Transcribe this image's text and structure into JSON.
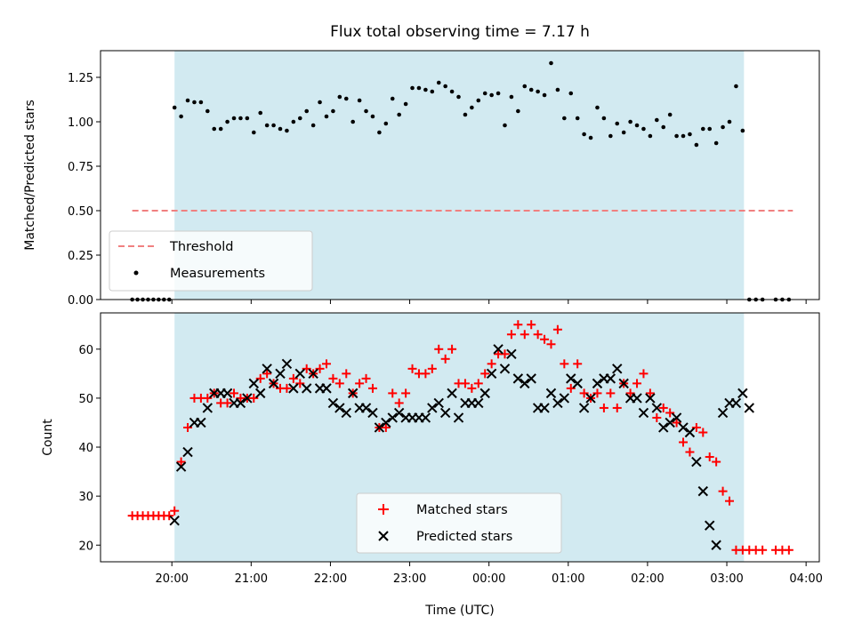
{
  "figure": {
    "title": "Flux total observing time = 7.17 h",
    "xlabel": "Time (UTC)",
    "night_span": {
      "start": "20:02",
      "end": "03:13",
      "color": "#add8e6"
    }
  },
  "chart_data": [
    {
      "type": "scatter",
      "ylabel": "Matched/Predicted stars",
      "xlim": [
        "19:06",
        "04:10"
      ],
      "ylim": [
        0,
        1.4
      ],
      "yticks": [
        0.0,
        0.25,
        0.5,
        0.75,
        1.0,
        1.25
      ],
      "threshold": {
        "name": "Threshold",
        "value": 0.5,
        "x_range": [
          "19:30",
          "03:50"
        ],
        "color": "#f08080"
      },
      "legend": {
        "position": "lower-left",
        "entries": [
          "Threshold",
          "Measurements"
        ]
      },
      "series": [
        {
          "name": "Measurements",
          "color": "#000000",
          "x": [
            "19:30",
            "19:34",
            "19:38",
            "19:42",
            "19:46",
            "19:50",
            "19:54",
            "19:58",
            "20:02",
            "20:07",
            "20:12",
            "20:17",
            "20:22",
            "20:27",
            "20:32",
            "20:37",
            "20:42",
            "20:47",
            "20:52",
            "20:57",
            "21:02",
            "21:07",
            "21:12",
            "21:17",
            "21:22",
            "21:27",
            "21:32",
            "21:37",
            "21:42",
            "21:47",
            "21:52",
            "21:57",
            "22:02",
            "22:07",
            "22:12",
            "22:17",
            "22:22",
            "22:27",
            "22:32",
            "22:37",
            "22:42",
            "22:47",
            "22:52",
            "22:57",
            "23:02",
            "23:07",
            "23:12",
            "23:17",
            "23:22",
            "23:27",
            "23:32",
            "23:37",
            "23:42",
            "23:47",
            "23:52",
            "23:57",
            "00:02",
            "00:07",
            "00:12",
            "00:17",
            "00:22",
            "00:27",
            "00:32",
            "00:37",
            "00:42",
            "00:47",
            "00:52",
            "00:57",
            "01:02",
            "01:07",
            "01:12",
            "01:17",
            "01:22",
            "01:27",
            "01:32",
            "01:37",
            "01:42",
            "01:47",
            "01:52",
            "01:57",
            "02:02",
            "02:07",
            "02:12",
            "02:17",
            "02:22",
            "02:27",
            "02:32",
            "02:37",
            "02:42",
            "02:47",
            "02:52",
            "02:57",
            "03:02",
            "03:07",
            "03:12",
            "03:17",
            "03:22",
            "03:27",
            "03:37",
            "03:42",
            "03:47"
          ],
          "y": [
            0,
            0,
            0,
            0,
            0,
            0,
            0,
            0,
            1.08,
            1.03,
            1.12,
            1.11,
            1.11,
            1.06,
            0.96,
            0.96,
            1.0,
            1.02,
            1.02,
            1.02,
            0.94,
            1.05,
            0.98,
            0.98,
            0.96,
            0.95,
            1.0,
            1.02,
            1.06,
            0.98,
            1.11,
            1.03,
            1.06,
            1.14,
            1.13,
            1.0,
            1.12,
            1.06,
            1.03,
            0.94,
            0.99,
            1.13,
            1.04,
            1.1,
            1.19,
            1.19,
            1.18,
            1.17,
            1.22,
            1.2,
            1.17,
            1.14,
            1.04,
            1.08,
            1.12,
            1.16,
            1.15,
            1.16,
            0.98,
            1.14,
            1.06,
            1.2,
            1.18,
            1.17,
            1.15,
            1.33,
            1.18,
            1.02,
            1.16,
            1.02,
            0.93,
            0.91,
            1.08,
            1.02,
            0.92,
            0.99,
            0.94,
            1.0,
            0.98,
            0.96,
            0.92,
            1.01,
            0.97,
            1.04,
            0.92,
            0.92,
            0.93,
            0.87,
            0.96,
            0.96,
            0.88,
            0.97,
            1.0,
            1.2,
            0.95,
            0,
            0,
            0,
            0,
            0,
            0
          ]
        }
      ]
    },
    {
      "type": "scatter",
      "ylabel": "Count",
      "xlim": [
        "19:06",
        "04:10"
      ],
      "ylim": [
        16.6,
        67.4
      ],
      "yticks": [
        20,
        30,
        40,
        50,
        60
      ],
      "xticks": [
        "20:00",
        "21:00",
        "22:00",
        "23:00",
        "00:00",
        "01:00",
        "02:00",
        "03:00",
        "04:00"
      ],
      "legend": {
        "position": "lower-center",
        "entries": [
          "Matched stars",
          "Predicted stars"
        ]
      },
      "series": [
        {
          "name": "Matched stars",
          "marker": "plus",
          "color": "#ff0000",
          "x": [
            "19:30",
            "19:34",
            "19:38",
            "19:42",
            "19:46",
            "19:50",
            "19:54",
            "19:58",
            "20:02",
            "20:07",
            "20:12",
            "20:17",
            "20:22",
            "20:27",
            "20:32",
            "20:37",
            "20:42",
            "20:47",
            "20:52",
            "20:57",
            "21:02",
            "21:07",
            "21:12",
            "21:17",
            "21:22",
            "21:27",
            "21:32",
            "21:37",
            "21:42",
            "21:47",
            "21:52",
            "21:57",
            "22:02",
            "22:07",
            "22:12",
            "22:17",
            "22:22",
            "22:27",
            "22:32",
            "22:37",
            "22:42",
            "22:47",
            "22:52",
            "22:57",
            "23:02",
            "23:07",
            "23:12",
            "23:17",
            "23:22",
            "23:27",
            "23:32",
            "23:37",
            "23:42",
            "23:47",
            "23:52",
            "23:57",
            "00:02",
            "00:07",
            "00:12",
            "00:17",
            "00:22",
            "00:27",
            "00:32",
            "00:37",
            "00:42",
            "00:47",
            "00:52",
            "00:57",
            "01:02",
            "01:07",
            "01:12",
            "01:17",
            "01:22",
            "01:27",
            "01:32",
            "01:37",
            "01:42",
            "01:47",
            "01:52",
            "01:57",
            "02:02",
            "02:07",
            "02:12",
            "02:17",
            "02:22",
            "02:27",
            "02:32",
            "02:37",
            "02:42",
            "02:47",
            "02:52",
            "02:57",
            "03:02",
            "03:07",
            "03:12",
            "03:17",
            "03:22",
            "03:27",
            "03:37",
            "03:42",
            "03:47"
          ],
          "y": [
            26,
            26,
            26,
            26,
            26,
            26,
            26,
            26,
            27,
            37,
            44,
            50,
            50,
            50,
            51,
            49,
            49,
            51,
            50,
            50,
            50,
            54,
            55,
            53,
            52,
            52,
            54,
            53,
            56,
            55,
            56,
            57,
            54,
            53,
            55,
            51,
            53,
            54,
            52,
            44,
            44,
            51,
            49,
            51,
            56,
            55,
            55,
            56,
            60,
            58,
            60,
            53,
            53,
            52,
            53,
            55,
            57,
            59,
            59,
            63,
            65,
            63,
            65,
            63,
            62,
            61,
            64,
            57,
            52,
            57,
            51,
            50,
            51,
            48,
            51,
            48,
            53,
            51,
            53,
            55,
            51,
            46,
            48,
            47,
            45,
            41,
            39,
            44,
            43,
            38,
            37,
            31,
            29,
            19,
            19,
            19,
            19,
            19,
            19,
            19,
            19
          ]
        },
        {
          "name": "Predicted stars",
          "marker": "cross",
          "color": "#000000",
          "x": [
            "20:02",
            "20:07",
            "20:12",
            "20:17",
            "20:22",
            "20:27",
            "20:32",
            "20:37",
            "20:42",
            "20:47",
            "20:52",
            "20:57",
            "21:02",
            "21:07",
            "21:12",
            "21:17",
            "21:22",
            "21:27",
            "21:32",
            "21:37",
            "21:42",
            "21:47",
            "21:52",
            "21:57",
            "22:02",
            "22:07",
            "22:12",
            "22:17",
            "22:22",
            "22:27",
            "22:32",
            "22:37",
            "22:42",
            "22:47",
            "22:52",
            "22:57",
            "23:02",
            "23:07",
            "23:12",
            "23:17",
            "23:22",
            "23:27",
            "23:32",
            "23:37",
            "23:42",
            "23:47",
            "23:52",
            "23:57",
            "00:02",
            "00:07",
            "00:12",
            "00:17",
            "00:22",
            "00:27",
            "00:32",
            "00:37",
            "00:42",
            "00:47",
            "00:52",
            "00:57",
            "01:02",
            "01:07",
            "01:12",
            "01:17",
            "01:22",
            "01:27",
            "01:32",
            "01:37",
            "01:42",
            "01:47",
            "01:52",
            "01:57",
            "02:02",
            "02:07",
            "02:12",
            "02:17",
            "02:22",
            "02:27",
            "02:32",
            "02:37",
            "02:42",
            "02:47",
            "02:52",
            "02:57",
            "03:02",
            "03:07",
            "03:12",
            "03:17"
          ],
          "y": [
            25,
            36,
            39,
            45,
            45,
            48,
            51,
            51,
            51,
            49,
            49,
            50,
            53,
            51,
            56,
            53,
            55,
            57,
            52,
            55,
            52,
            55,
            52,
            52,
            49,
            48,
            47,
            51,
            48,
            48,
            47,
            44,
            45,
            46,
            47,
            46,
            46,
            46,
            46,
            48,
            49,
            47,
            51,
            46,
            49,
            49,
            49,
            51,
            55,
            60,
            56,
            59,
            54,
            53,
            54,
            48,
            48,
            51,
            49,
            50,
            54,
            53,
            48,
            50,
            53,
            54,
            54,
            56,
            53,
            50,
            50,
            47,
            50,
            48,
            44,
            45,
            46,
            44,
            43,
            37,
            31,
            24,
            20,
            47,
            49,
            49,
            51,
            48
          ]
        }
      ]
    }
  ]
}
